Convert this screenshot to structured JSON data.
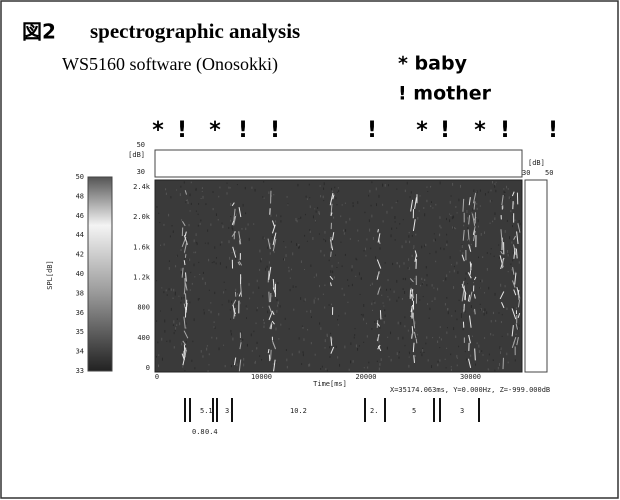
{
  "figure": {
    "label": "図2",
    "title": "spectrographic analysis",
    "subtitle": "WS5160 software (Onosokki)",
    "legend": [
      "* baby",
      "! mother"
    ],
    "markers": [
      "*",
      "!",
      "*",
      "!",
      "!",
      "!",
      "*",
      "!",
      "*",
      "!",
      "!"
    ]
  },
  "spectrogram": {
    "top_panel": {
      "unit": "[dB]",
      "max": "50",
      "min": "30"
    },
    "right_panel": {
      "unit": "[dB]",
      "min": "30",
      "max": "50"
    },
    "colorbar": {
      "label": "SPL[dB]",
      "ticks": [
        "50",
        "48",
        "46",
        "44",
        "42",
        "40",
        "38",
        "36",
        "35",
        "34",
        "33"
      ]
    },
    "y_ticks": [
      "2.4k",
      "2.0k",
      "1.6k",
      "1.2k",
      "800",
      "400",
      "0"
    ],
    "x_ticks": [
      "0",
      "10000",
      "20000",
      "30000"
    ],
    "x_label": "Time[ms]",
    "cursor": "X=35174.063ms, Y=0.000Hz, Z=-999.000dB"
  },
  "segments": {
    "durations": [
      "5.1",
      "3.",
      "10.2",
      "2.",
      "5",
      "3"
    ],
    "gaps": [
      "0.8",
      "0.4"
    ]
  }
}
